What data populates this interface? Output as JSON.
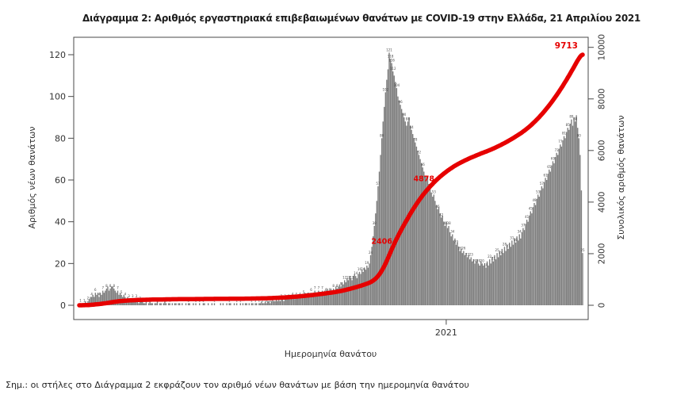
{
  "page": {
    "title": "Διάγραμμα 2: Αριθμός εργαστηριακά επιβεβαιωμένων θανάτων με COVID-19 στην Ελλάδα, 21 Απριλίου 2021",
    "footnote": "Σημ.: οι στήλες στο Διάγραμμα 2 εκφράζουν τον αριθμό νέων θανάτων με βάση την ημερομηνία θανάτου"
  },
  "colors": {
    "bar": "#7f7f7f",
    "cumulative_line": "#e60000",
    "annotation": "#e60000",
    "axis": "#4a4a4a",
    "tick_text": "#333333",
    "bar_label": "#4a4a4a"
  },
  "chart_data": {
    "type": "bar",
    "title": "Διάγραμμα 2: Αριθμός εργαστηριακά επιβεβαιωμένων θανάτων με COVID-19 στην Ελλάδα, 21 Απριλίου 2021",
    "xlabel": "Ημερομηνία θανάτου",
    "ylabel_left": "Αριθμός νέων θανάτων",
    "ylabel_right": "Συνολικός αριθμός θανάτων",
    "grid": false,
    "legend": "none",
    "left_axis": {
      "ticks": [
        0,
        20,
        40,
        60,
        80,
        100,
        120
      ],
      "lim": [
        0,
        125
      ]
    },
    "right_axis": {
      "ticks": [
        0,
        2000,
        4000,
        6000,
        8000,
        10000
      ],
      "lim": [
        0,
        10400
      ]
    },
    "x_axis": {
      "tick_labels": [
        "2021"
      ],
      "tick_fractions": [
        0.729
      ]
    },
    "annotations": [
      {
        "label": "2406",
        "value": 2406
      },
      {
        "label": "4878",
        "value": 4878
      },
      {
        "label": "9713",
        "value": 9713
      }
    ],
    "cumulative_final_total": 9713,
    "daily_new_deaths": [
      0,
      1,
      0,
      1,
      1,
      2,
      1,
      2,
      3,
      4,
      4,
      5,
      4,
      6,
      5,
      6,
      4,
      6,
      5,
      7,
      6,
      7,
      8,
      9,
      7,
      8,
      9,
      9,
      8,
      7,
      6,
      7,
      5,
      6,
      5,
      4,
      5,
      4,
      3,
      4,
      3,
      3,
      2,
      3,
      2,
      2,
      3,
      2,
      1,
      2,
      2,
      2,
      1,
      1,
      2,
      0,
      1,
      2,
      1,
      1,
      0,
      1,
      1,
      2,
      0,
      1,
      1,
      0,
      1,
      2,
      1,
      0,
      1,
      1,
      0,
      1,
      0,
      1,
      1,
      0,
      1,
      1,
      0,
      1,
      0,
      0,
      1,
      0,
      1,
      1,
      0,
      0,
      1,
      0,
      1,
      0,
      0,
      1,
      0,
      0,
      1,
      1,
      0,
      0,
      1,
      0,
      0,
      1,
      0,
      1,
      0,
      0,
      0,
      0,
      1,
      0,
      1,
      0,
      0,
      1,
      0,
      1,
      1,
      0,
      0,
      1,
      0,
      1,
      0,
      0,
      1,
      0,
      1,
      0,
      1,
      1,
      0,
      1,
      0,
      1,
      1,
      0,
      1,
      1,
      0,
      1,
      1,
      2,
      1,
      1,
      2,
      1,
      2,
      2,
      1,
      2,
      3,
      2,
      2,
      3,
      2,
      3,
      2,
      3,
      3,
      2,
      3,
      4,
      3,
      3,
      4,
      3,
      4,
      4,
      3,
      4,
      4,
      5,
      4,
      5,
      4,
      5,
      6,
      5,
      4,
      6,
      5,
      6,
      5,
      6,
      7,
      5,
      6,
      7,
      6,
      5,
      7,
      6,
      7,
      6,
      8,
      7,
      6,
      8,
      7,
      8,
      7,
      9,
      8,
      9,
      10,
      9,
      11,
      10,
      12,
      11,
      13,
      12,
      14,
      13,
      12,
      14,
      15,
      14,
      13,
      15,
      16,
      15,
      17,
      16,
      18,
      17,
      19,
      18,
      20,
      24,
      28,
      33,
      38,
      44,
      50,
      57,
      64,
      72,
      80,
      88,
      95,
      102,
      108,
      113,
      121,
      118,
      116,
      112,
      110,
      107,
      104,
      100,
      98,
      96,
      94,
      92,
      90,
      88,
      86,
      88,
      90,
      86,
      84,
      82,
      80,
      78,
      76,
      74,
      72,
      70,
      68,
      66,
      64,
      62,
      60,
      62,
      58,
      56,
      54,
      52,
      53,
      50,
      48,
      46,
      47,
      44,
      42,
      43,
      40,
      38,
      40,
      37,
      38,
      35,
      33,
      34,
      31,
      32,
      29,
      30,
      28,
      26,
      27,
      25,
      26,
      24,
      25,
      23,
      24,
      22,
      23,
      21,
      22,
      20,
      21,
      22,
      20,
      19,
      21,
      20,
      19,
      20,
      18,
      21,
      19,
      22,
      20,
      23,
      21,
      24,
      22,
      25,
      23,
      26,
      24,
      27,
      25,
      28,
      26,
      29,
      27,
      30,
      28,
      31,
      29,
      32,
      30,
      33,
      31,
      34,
      32,
      35,
      37,
      36,
      39,
      41,
      40,
      43,
      45,
      44,
      47,
      49,
      48,
      51,
      53,
      52,
      55,
      57,
      56,
      59,
      61,
      60,
      63,
      65,
      64,
      67,
      69,
      68,
      71,
      73,
      72,
      75,
      77,
      76,
      79,
      81,
      80,
      83,
      85,
      84,
      87,
      89,
      86,
      90,
      88,
      91,
      85,
      80,
      72,
      55,
      25
    ]
  }
}
